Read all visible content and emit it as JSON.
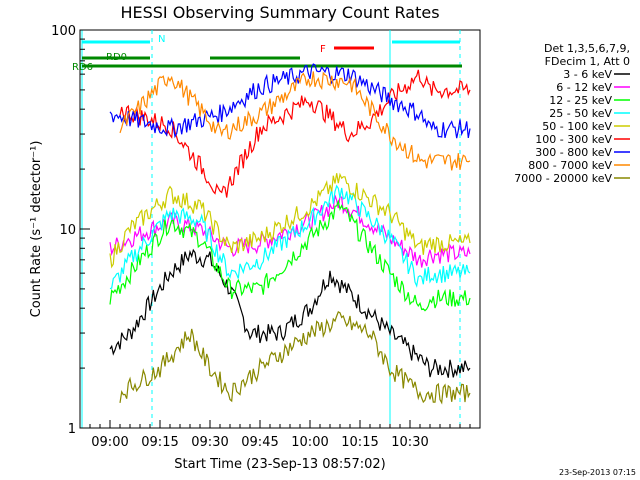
{
  "chart_data": {
    "type": "line",
    "title": "HESSI Observing Summary Count Rates",
    "xlabel": "Start Time (23-Sep-13 08:57:02)",
    "ylabel": "Count Rate (s⁻¹ detector⁻¹)",
    "y_scale": "log",
    "ylim": [
      1,
      100
    ],
    "xlim": [
      -3,
      37
    ],
    "x_ticks": [
      "09:00",
      "09:15",
      "09:30",
      "09:45",
      "10:00",
      "10:15",
      "10:30"
    ],
    "y_ticks": [
      "1",
      "10",
      "100"
    ],
    "legend_header": [
      "Det 1,3,5,6,7,9,",
      "FDecim 1, Att 0"
    ],
    "timestamp": "23-Sep-2013 07:15",
    "series": [
      {
        "name": "3 - 6 keV",
        "color": "#000000",
        "x": [
          0,
          2,
          6,
          8,
          10,
          12,
          14,
          17,
          20,
          22,
          28,
          32,
          35,
          36
        ],
        "y": [
          2.5,
          3,
          6,
          7.5,
          7,
          5,
          3,
          3,
          4,
          6,
          3,
          2,
          2,
          2
        ]
      },
      {
        "name": "6 - 12 keV",
        "color": "#ff00ff",
        "x": [
          0,
          2,
          6,
          9,
          12,
          15,
          20,
          23,
          28,
          31,
          32,
          35,
          36
        ],
        "y": [
          8,
          9,
          11,
          10,
          8,
          8.5,
          11,
          14,
          9,
          7,
          7.5,
          7.5,
          7.5
        ]
      },
      {
        "name": "12 - 25 keV",
        "color": "#00ff00",
        "x": [
          0,
          2,
          6,
          9,
          12,
          15,
          20,
          23,
          28,
          31,
          32,
          35,
          36
        ],
        "y": [
          4.5,
          6,
          11,
          9,
          5,
          5,
          9,
          13,
          6,
          4,
          4.5,
          4.5,
          4.5
        ]
      },
      {
        "name": "25 - 50 keV",
        "color": "#00ffff",
        "x": [
          0,
          2,
          6,
          9,
          12,
          15,
          20,
          23,
          28,
          31,
          32,
          35,
          36
        ],
        "y": [
          5,
          7,
          12,
          11,
          6,
          7,
          11,
          16,
          9,
          5.5,
          6,
          6,
          6
        ]
      },
      {
        "name": "50 - 100 keV",
        "color": "#cccc00",
        "x": [
          0,
          2,
          6,
          9,
          12,
          15,
          20,
          23,
          28,
          31,
          32,
          35,
          36
        ],
        "y": [
          7,
          10,
          15,
          13,
          8,
          9,
          13,
          18,
          12,
          8,
          8.5,
          8.5,
          8.5
        ]
      },
      {
        "name": "100 - 300 keV",
        "color": "#ff0000",
        "x": [
          1,
          6,
          10,
          11,
          15,
          20,
          24,
          26,
          28,
          31,
          32,
          35,
          36
        ],
        "y": [
          40,
          33,
          18,
          14,
          32,
          45,
          30,
          35,
          45,
          60,
          50,
          50,
          50
        ]
      },
      {
        "name": "300 - 800 keV",
        "color": "#0000ff",
        "x": [
          0,
          6,
          11,
          15,
          20,
          24,
          28,
          31,
          32,
          35,
          36
        ],
        "y": [
          38,
          32,
          38,
          52,
          62,
          60,
          45,
          38,
          32,
          32,
          32
        ]
      },
      {
        "name": "800 - 7000 keV",
        "color": "#ff8800",
        "x": [
          1,
          6,
          10,
          11,
          15,
          20,
          24,
          28,
          31,
          32,
          35,
          36
        ],
        "y": [
          32,
          60,
          35,
          30,
          38,
          58,
          55,
          30,
          22,
          22,
          22,
          22
        ]
      },
      {
        "name": "7000 - 20000 keV",
        "color": "#888800",
        "x": [
          1,
          5,
          8,
          10,
          12,
          15,
          20,
          23,
          26,
          28,
          31,
          32,
          35,
          36
        ],
        "y": [
          1.5,
          2,
          3,
          2,
          1.5,
          2,
          3,
          3.5,
          3,
          2,
          1.5,
          1.5,
          1.5,
          1.5
        ]
      }
    ],
    "annotations": {
      "saa_label": "N",
      "flare_label": "F",
      "rd_label_1": "RD0",
      "rd_label_2": "RD6"
    }
  }
}
